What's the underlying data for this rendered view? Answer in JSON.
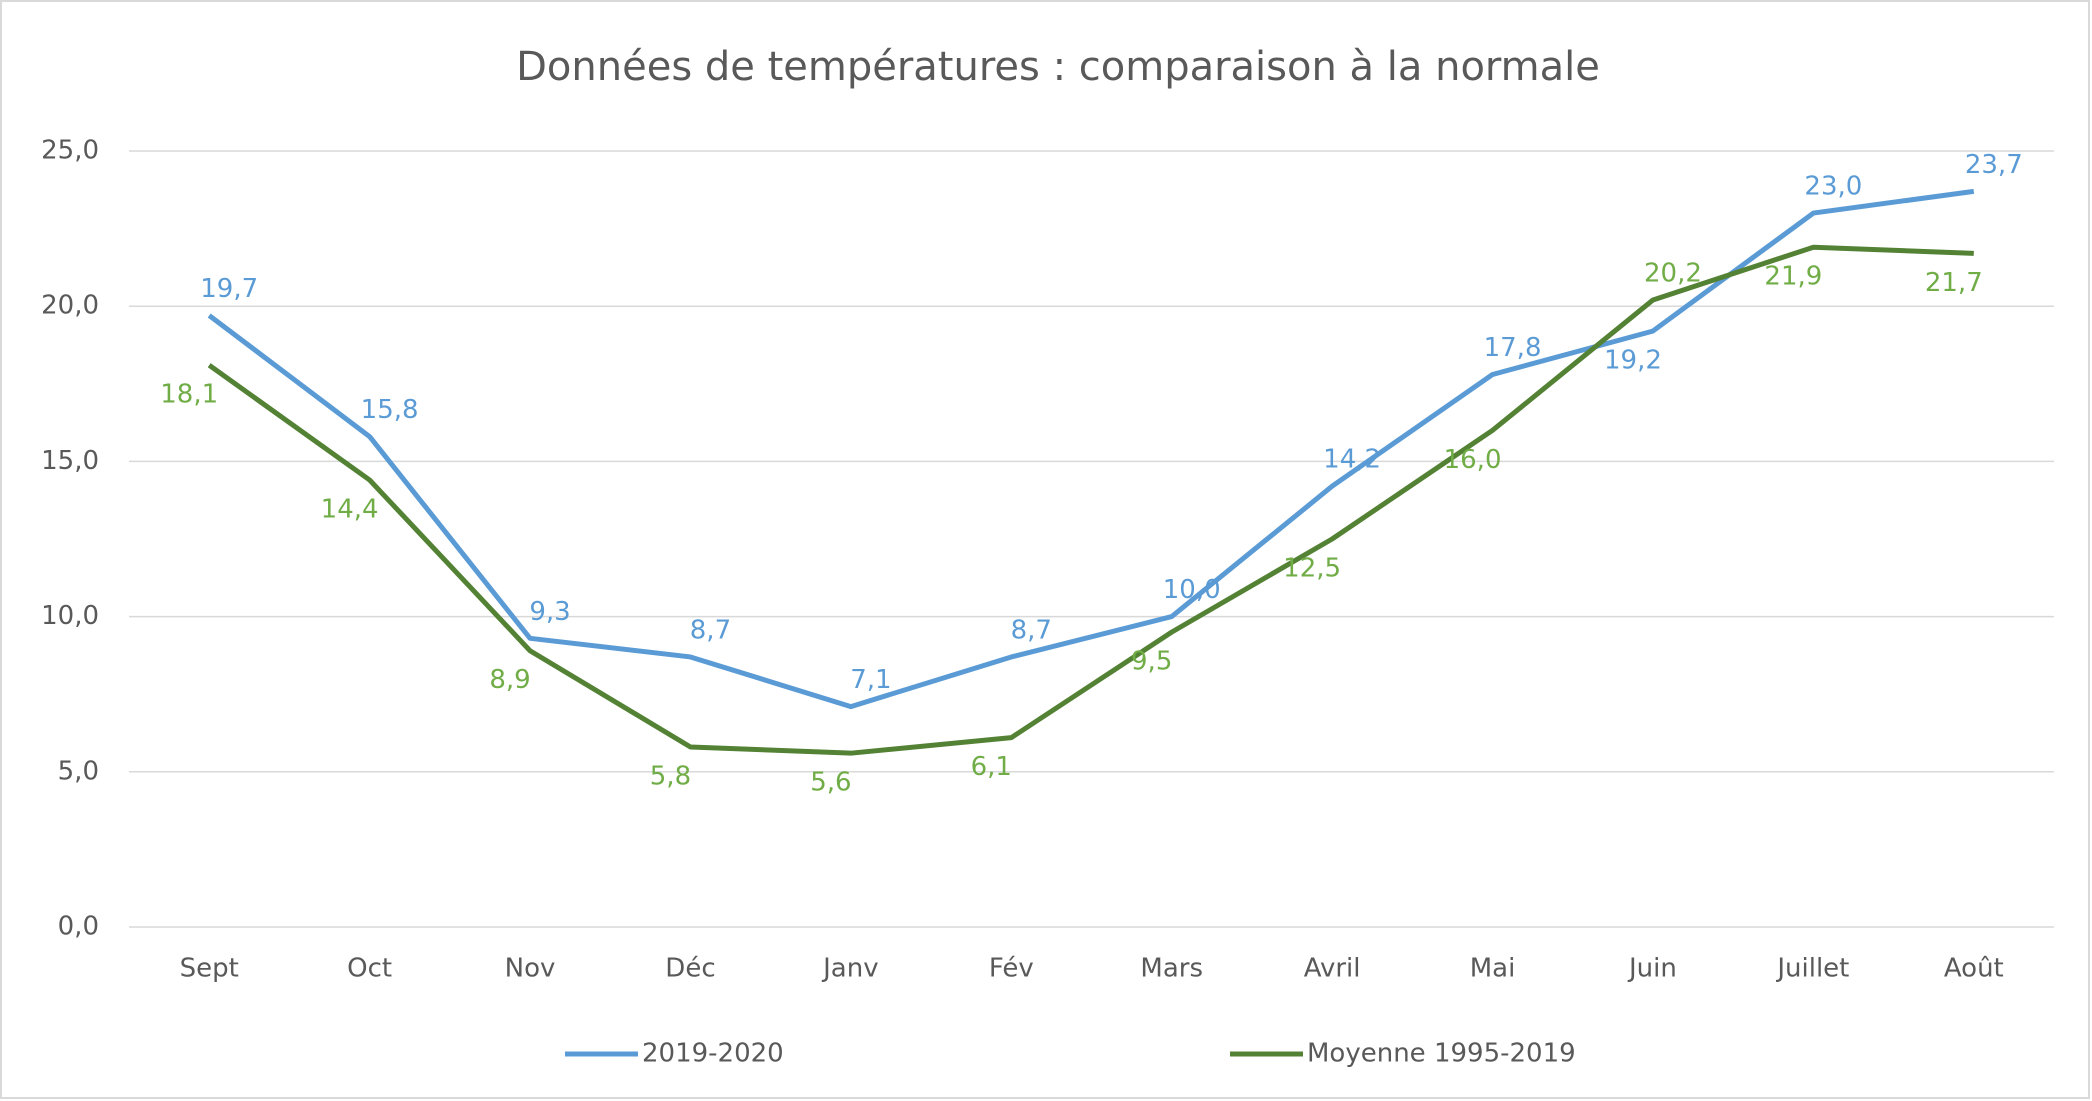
{
  "chart_data": {
    "type": "line",
    "title": "Données de températures : comparaison à la normale",
    "categories": [
      "Sept",
      "Oct",
      "Nov",
      "Déc",
      "Janv",
      "Fév",
      "Mars",
      "Avril",
      "Mai",
      "Juin",
      "Juillet",
      "Août"
    ],
    "series": [
      {
        "name": "2019-2020",
        "color": "#5b9bd5",
        "label_color": "#5b9bd5",
        "values": [
          19.7,
          15.8,
          9.3,
          8.7,
          7.1,
          8.7,
          10.0,
          14.2,
          17.8,
          19.2,
          23.0,
          23.7
        ],
        "value_labels": [
          "19,7",
          "15,8",
          "9,3",
          "8,7",
          "7,1",
          "8,7",
          "10,0",
          "14,2",
          "17,8",
          "19,2",
          "23,0",
          "23,7"
        ]
      },
      {
        "name": "Moyenne 1995-2019",
        "color": "#548235",
        "label_color": "#70ad47",
        "values": [
          18.1,
          14.4,
          8.9,
          5.8,
          5.6,
          6.1,
          9.5,
          12.5,
          16.0,
          20.2,
          21.9,
          21.7
        ],
        "value_labels": [
          "18,1",
          "14,4",
          "8,9",
          "5,8",
          "5,6",
          "6,1",
          "9,5",
          "12,5",
          "16,0",
          "20,2",
          "21,9",
          "21,7"
        ]
      }
    ],
    "ylim": [
      0,
      25
    ],
    "yticks": [
      {
        "value": 0,
        "label": "0,0"
      },
      {
        "value": 5,
        "label": "5,0"
      },
      {
        "value": 10,
        "label": "10,0"
      },
      {
        "value": 15,
        "label": "15,0"
      },
      {
        "value": 20,
        "label": "20,0"
      },
      {
        "value": 25,
        "label": "25,0"
      }
    ],
    "grid": true,
    "legend": "bottom"
  }
}
